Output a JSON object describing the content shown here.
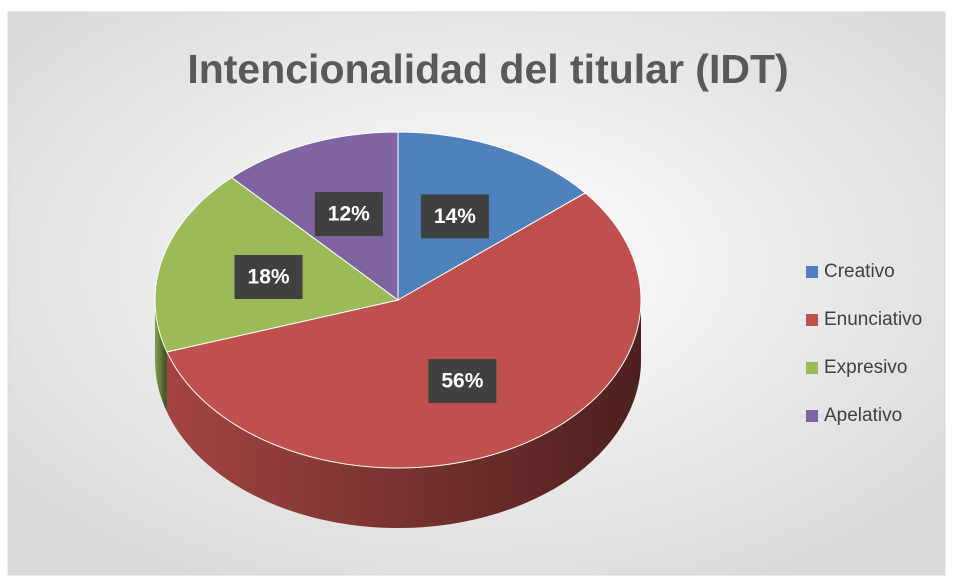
{
  "chart_data": {
    "type": "pie",
    "title": "Intencionalidad del titular (IDT)",
    "categories": [
      "Creativo",
      "Enunciativo",
      "Expresivo",
      "Apelativo"
    ],
    "values": [
      14,
      56,
      18,
      12
    ],
    "value_labels": [
      "14%",
      "56%",
      "18%",
      "12%"
    ],
    "colors": [
      "#4f81bd",
      "#c0504d",
      "#9bbb59",
      "#8064a2"
    ],
    "legend": "right"
  }
}
